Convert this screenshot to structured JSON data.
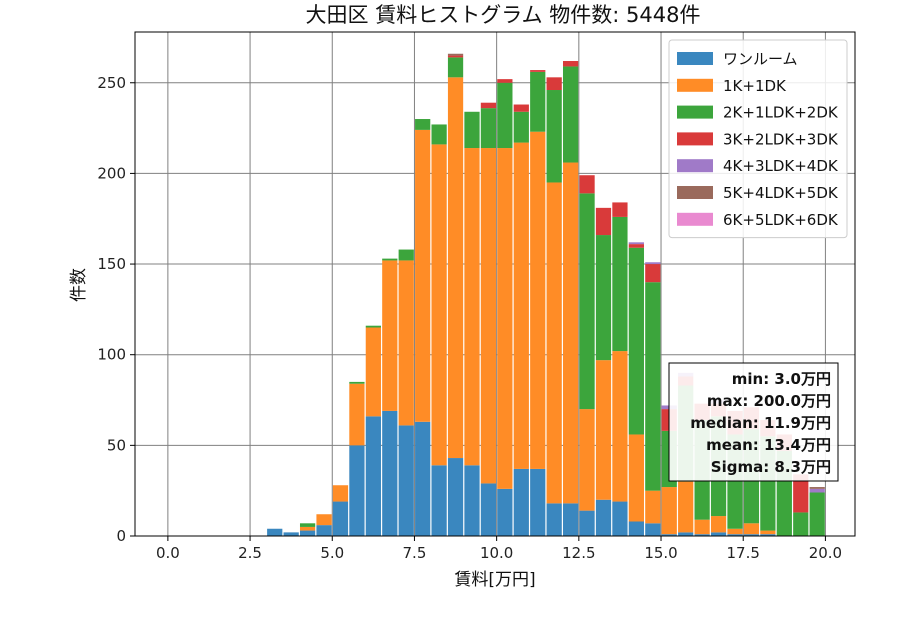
{
  "chart_data": {
    "type": "bar",
    "stacked": true,
    "title": "大田区 賃料ヒストグラム 物件数: 5448件",
    "xlabel": "賃料[万円]",
    "ylabel": "件数",
    "xlim": [
      -1.0,
      20.9
    ],
    "ylim": [
      0,
      278
    ],
    "xticks": [
      "0.0",
      "2.5",
      "5.0",
      "7.5",
      "10.0",
      "12.5",
      "15.0",
      "17.5",
      "20.0"
    ],
    "xtick_values": [
      0,
      2.5,
      5,
      7.5,
      10,
      12.5,
      15,
      17.5,
      20
    ],
    "yticks": [
      "0",
      "50",
      "100",
      "150",
      "200",
      "250"
    ],
    "ytick_values": [
      0,
      50,
      100,
      150,
      200,
      250
    ],
    "grid": true,
    "legend_position": "top-right",
    "bin_width": 0.5,
    "x": [
      3.0,
      3.5,
      4.0,
      4.5,
      5.0,
      5.5,
      6.0,
      6.5,
      7.0,
      7.5,
      8.0,
      8.5,
      9.0,
      9.5,
      10.0,
      10.5,
      11.0,
      11.5,
      12.0,
      12.5,
      13.0,
      13.5,
      14.0,
      14.5,
      15.0,
      15.5,
      16.0,
      16.5,
      17.0,
      17.5,
      18.0,
      18.5,
      19.0,
      19.5
    ],
    "series": [
      {
        "name": "ワンルーム",
        "color": "#3a87bf",
        "values": [
          4,
          2,
          3,
          6,
          19,
          50,
          66,
          69,
          61,
          63,
          39,
          43,
          39,
          29,
          26,
          37,
          37,
          18,
          18,
          14,
          20,
          19,
          8,
          7,
          1,
          2,
          1,
          2,
          1,
          1,
          1,
          0,
          0,
          0
        ]
      },
      {
        "name": "1K+1DK",
        "color": "#ff8c26",
        "values": [
          0,
          0,
          2,
          6,
          9,
          34,
          49,
          83,
          91,
          161,
          177,
          210,
          175,
          185,
          188,
          180,
          186,
          177,
          188,
          56,
          77,
          83,
          48,
          18,
          26,
          28,
          8,
          9,
          3,
          6,
          2,
          0,
          0,
          0
        ]
      },
      {
        "name": "2K+1LDK+2DK",
        "color": "#3ca53c",
        "values": [
          0,
          0,
          2,
          0,
          0,
          1,
          1,
          1,
          6,
          6,
          11,
          11,
          20,
          22,
          36,
          17,
          33,
          51,
          53,
          119,
          69,
          74,
          103,
          115,
          31,
          53,
          55,
          55,
          52,
          52,
          52,
          47,
          13,
          24
        ]
      },
      {
        "name": "3K+2LDK+3DK",
        "color": "#d93a3a",
        "values": [
          0,
          0,
          0,
          0,
          0,
          0,
          0,
          0,
          0,
          0,
          0,
          1,
          0,
          3,
          2,
          4,
          1,
          7,
          3,
          10,
          15,
          8,
          2,
          10,
          12,
          5,
          9,
          7,
          13,
          12,
          9,
          9,
          21,
          0
        ]
      },
      {
        "name": "4K+3LDK+4DK",
        "color": "#a07ac8",
        "values": [
          0,
          0,
          0,
          0,
          0,
          0,
          0,
          0,
          0,
          0,
          0,
          0,
          0,
          0,
          0,
          0,
          0,
          0,
          0,
          0,
          0,
          0,
          1,
          1,
          2,
          2,
          0,
          2,
          0,
          0,
          0,
          0,
          0,
          2
        ]
      },
      {
        "name": "5K+4LDK+5DK",
        "color": "#9a6a5c",
        "values": [
          0,
          0,
          0,
          0,
          0,
          0,
          0,
          0,
          0,
          0,
          0,
          1,
          0,
          0,
          0,
          0,
          0,
          0,
          0,
          0,
          0,
          0,
          0,
          0,
          0,
          0,
          0,
          0,
          0,
          0,
          0,
          0,
          0,
          1
        ]
      },
      {
        "name": "6K+5LDK+6DK",
        "color": "#e98ad0",
        "values": [
          0,
          0,
          0,
          0,
          0,
          0,
          0,
          0,
          0,
          0,
          0,
          0,
          0,
          0,
          0,
          0,
          0,
          0,
          0,
          0,
          0,
          0,
          0,
          0,
          0,
          0,
          0,
          0,
          0,
          0,
          0,
          0,
          0,
          0
        ]
      }
    ],
    "annotations": {
      "stats": [
        "min: 3.0万円",
        "max: 200.0万円",
        "median: 11.9万円",
        "mean: 13.4万円",
        "Sigma: 8.3万円"
      ]
    }
  }
}
